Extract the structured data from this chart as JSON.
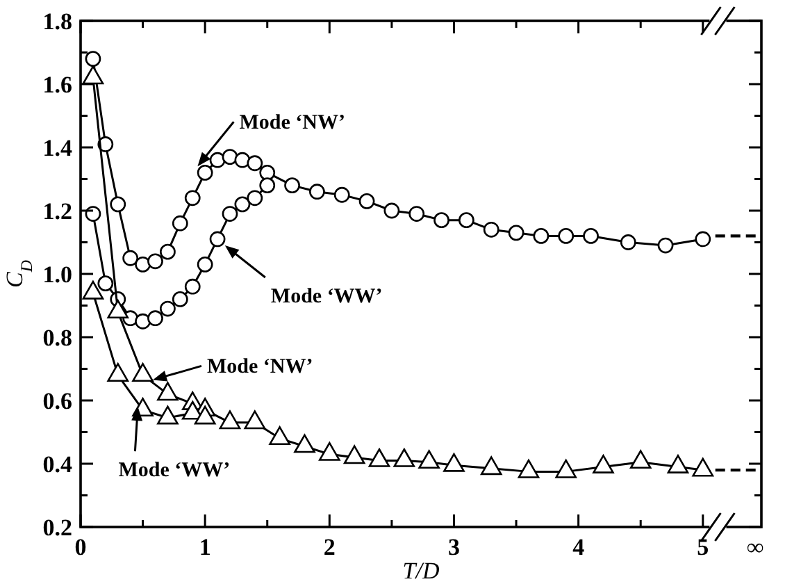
{
  "chart_data": {
    "type": "line",
    "xlabel": "T/D",
    "ylabel": "C$_{D}$",
    "xlim": [
      0,
      5.47
    ],
    "ylim": [
      0.2,
      1.8
    ],
    "xticks": [
      0,
      {
        "value": 0.5,
        "label": null
      },
      1,
      {
        "value": 1.5,
        "label": null
      },
      2,
      {
        "value": 2.5,
        "label": null
      },
      3,
      {
        "value": 3.5,
        "label": null
      },
      4,
      {
        "value": 4.5,
        "label": null
      },
      5,
      {
        "value": 5.42,
        "label": "∞"
      }
    ],
    "yticks": [
      0.2,
      {
        "value": 0.3,
        "label": null
      },
      0.4,
      {
        "value": 0.5,
        "label": null
      },
      0.6,
      {
        "value": 0.7,
        "label": null
      },
      0.8,
      {
        "value": 0.9,
        "label": null
      },
      {
        "value": 1,
        "label": "1.0"
      },
      {
        "value": 1.1,
        "label": null
      },
      1.2,
      {
        "value": 1.3,
        "label": null
      },
      1.4,
      {
        "value": 1.5,
        "label": null
      },
      1.6,
      {
        "value": 1.7,
        "label": null
      },
      1.8
    ],
    "grid": false,
    "series": [
      {
        "color": "#000000",
        "marker": "circle",
        "line_style": "solid",
        "x": [
          0.1,
          0.2,
          0.3,
          0.4,
          0.5,
          0.6,
          0.7,
          0.8,
          0.9,
          1.0,
          1.1,
          1.2,
          1.3,
          1.4,
          1.5,
          1.7,
          1.9,
          2.1,
          2.3,
          2.5,
          2.7,
          2.9,
          3.1,
          3.3,
          3.5,
          3.7,
          3.9,
          4.1,
          4.4,
          4.7,
          5.0
        ],
        "values": [
          1.68,
          1.41,
          1.22,
          1.05,
          1.03,
          1.04,
          1.07,
          1.16,
          1.24,
          1.32,
          1.36,
          1.37,
          1.36,
          1.35,
          1.32,
          1.28,
          1.26,
          1.25,
          1.23,
          1.2,
          1.19,
          1.17,
          1.17,
          1.14,
          1.13,
          1.12,
          1.12,
          1.12,
          1.1,
          1.09,
          1.11
        ]
      },
      {
        "color": "#000000",
        "marker": "circle",
        "line_style": "solid",
        "x": [
          0.1,
          0.2,
          0.3,
          0.4,
          0.5,
          0.6,
          0.7,
          0.8,
          0.9,
          1.0,
          1.1,
          1.2,
          1.3,
          1.4,
          1.5
        ],
        "values": [
          1.19,
          0.97,
          0.92,
          0.86,
          0.85,
          0.86,
          0.89,
          0.92,
          0.96,
          1.03,
          1.11,
          1.19,
          1.22,
          1.24,
          1.28
        ]
      },
      {
        "color": "#000000",
        "marker": "triangle",
        "line_style": "solid",
        "x": [
          0.1,
          0.3,
          0.5,
          0.7,
          0.9,
          1.0,
          1.2,
          1.4,
          1.6,
          1.8,
          2.0,
          2.2,
          2.4,
          2.6,
          2.8,
          3.0,
          3.3,
          3.6,
          3.9,
          4.2,
          4.5,
          4.8,
          5.0
        ],
        "values": [
          1.62,
          0.88,
          0.68,
          0.62,
          0.59,
          0.57,
          0.53,
          0.53,
          0.48,
          0.455,
          0.43,
          0.42,
          0.41,
          0.41,
          0.405,
          0.395,
          0.385,
          0.375,
          0.375,
          0.39,
          0.405,
          0.39,
          0.38
        ]
      },
      {
        "color": "#000000",
        "marker": "triangle",
        "line_style": "solid",
        "x": [
          0.1,
          0.3,
          0.5,
          0.7,
          0.9,
          1.0
        ],
        "values": [
          0.94,
          0.68,
          0.57,
          0.545,
          0.56,
          0.545
        ]
      },
      {
        "color": "#000000",
        "marker": "none",
        "line_style": "dashed",
        "x": [
          5.1,
          5.47
        ],
        "values": [
          1.12,
          1.12
        ]
      },
      {
        "color": "#000000",
        "marker": "none",
        "line_style": "dashed",
        "x": [
          5.1,
          5.47
        ],
        "values": [
          0.38,
          0.38
        ]
      }
    ],
    "annotations": [
      {
        "text": "Mode ‘NW’",
        "x": 0.94,
        "y": 1.34
      },
      {
        "text": "Mode ‘WW’",
        "x": 1.16,
        "y": 1.09
      },
      {
        "text": "Mode ‘NW’",
        "x": 0.58,
        "y": 0.665
      },
      {
        "text": "Mode ‘WW’",
        "x": 0.46,
        "y": 0.58
      }
    ]
  }
}
